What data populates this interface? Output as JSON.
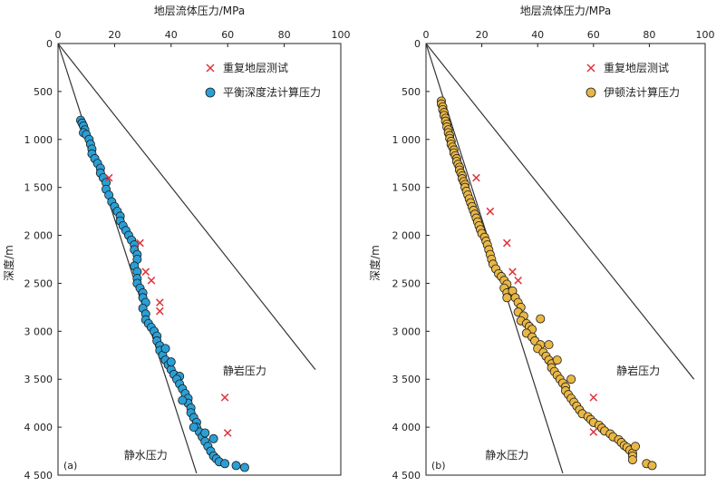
{
  "chart_data": [
    {
      "type": "scatter",
      "panel_label": "(a)",
      "x_label_top": "地层流体压力/MPa",
      "ylabel": "深度/m",
      "xlim": [
        0,
        100
      ],
      "ylim": [
        0,
        4500
      ],
      "x_ticks": [
        0,
        20,
        40,
        60,
        80,
        100
      ],
      "y_ticks": [
        0,
        500,
        1000,
        1500,
        2000,
        2500,
        3000,
        3500,
        4000,
        4500
      ],
      "y_tick_labels": [
        "0",
        "500",
        "1 000",
        "1 500",
        "2 000",
        "2 500",
        "3 000",
        "3 500",
        "4 000",
        "4 500"
      ],
      "legend": [
        {
          "name": "重复地层测试",
          "marker": "x",
          "color": "#e0333a"
        },
        {
          "name": "平衡深度法计算压力",
          "marker": "circle",
          "color": "#2a9fd6"
        }
      ],
      "reference_lines": [
        {
          "name": "静水压力",
          "from": [
            0,
            0
          ],
          "to": [
            49,
            4480
          ]
        },
        {
          "name": "静岩压力",
          "from": [
            0,
            0
          ],
          "to": [
            91,
            3400
          ]
        }
      ],
      "annotations": [
        {
          "text": "静水压力",
          "x": 31,
          "y": 4330
        },
        {
          "text": "静岩压力",
          "x": 66,
          "y": 3450
        }
      ],
      "series": [
        {
          "name": "平衡深度法计算压力",
          "marker": "circle",
          "color": "#2a9fd6",
          "points": [
            [
              8,
              800
            ],
            [
              8.5,
              830
            ],
            [
              9,
              860
            ],
            [
              9.5,
              900
            ],
            [
              9,
              930
            ],
            [
              10,
              950
            ],
            [
              11,
              1000
            ],
            [
              11.5,
              1050
            ],
            [
              12,
              1100
            ],
            [
              12,
              1150
            ],
            [
              13,
              1200
            ],
            [
              14,
              1250
            ],
            [
              15,
              1300
            ],
            [
              15,
              1350
            ],
            [
              16,
              1400
            ],
            [
              17,
              1450
            ],
            [
              17,
              1520
            ],
            [
              18,
              1580
            ],
            [
              19,
              1650
            ],
            [
              20,
              1700
            ],
            [
              21,
              1750
            ],
            [
              22,
              1800
            ],
            [
              22,
              1850
            ],
            [
              23,
              1900
            ],
            [
              24,
              1950
            ],
            [
              25,
              2000
            ],
            [
              26,
              2050
            ],
            [
              27,
              2100
            ],
            [
              27,
              2150
            ],
            [
              28,
              2200
            ],
            [
              28,
              2250
            ],
            [
              27,
              2320
            ],
            [
              28,
              2380
            ],
            [
              28,
              2450
            ],
            [
              28,
              2500
            ],
            [
              29,
              2550
            ],
            [
              30,
              2600
            ],
            [
              30,
              2650
            ],
            [
              31,
              2700
            ],
            [
              30,
              2760
            ],
            [
              31,
              2820
            ],
            [
              31,
              2880
            ],
            [
              32,
              2920
            ],
            [
              33,
              2960
            ],
            [
              34,
              3000
            ],
            [
              35,
              3050
            ],
            [
              35,
              3100
            ],
            [
              36,
              3150
            ],
            [
              36,
              3200
            ],
            [
              37,
              3250
            ],
            [
              38,
              3300
            ],
            [
              39,
              3350
            ],
            [
              40,
              3400
            ],
            [
              41,
              3450
            ],
            [
              43,
              3470
            ],
            [
              42,
              3500
            ],
            [
              43,
              3550
            ],
            [
              44,
              3600
            ],
            [
              45,
              3650
            ],
            [
              46,
              3700
            ],
            [
              46,
              3750
            ],
            [
              47,
              3800
            ],
            [
              47,
              3850
            ],
            [
              48,
              3900
            ],
            [
              49,
              3950
            ],
            [
              49,
              4000
            ],
            [
              50,
              4050
            ],
            [
              51,
              4100
            ],
            [
              52,
              4150
            ],
            [
              53,
              4200
            ],
            [
              54,
              4250
            ],
            [
              55,
              4300
            ],
            [
              56,
              4330
            ],
            [
              57,
              4360
            ],
            [
              59,
              4380
            ],
            [
              63,
              4400
            ],
            [
              66,
              4420
            ],
            [
              38,
              3180
            ],
            [
              40,
              3320
            ],
            [
              44,
              3720
            ],
            [
              48,
              4000
            ],
            [
              52,
              4060
            ],
            [
              55,
              4120
            ]
          ]
        },
        {
          "name": "重复地层测试",
          "marker": "x",
          "color": "#e0333a",
          "points": [
            [
              18,
              1400
            ],
            [
              29,
              2080
            ],
            [
              31,
              2380
            ],
            [
              33,
              2470
            ],
            [
              36,
              2700
            ],
            [
              36,
              2790
            ],
            [
              59,
              3690
            ],
            [
              60,
              4060
            ]
          ]
        }
      ]
    },
    {
      "type": "scatter",
      "panel_label": "(b)",
      "x_label_top": "地层流体压力/MPa",
      "ylabel": "深度/m",
      "xlim": [
        0,
        100
      ],
      "ylim": [
        0,
        4500
      ],
      "x_ticks": [
        0,
        20,
        40,
        60,
        80,
        100
      ],
      "y_ticks": [
        0,
        500,
        1000,
        1500,
        2000,
        2500,
        3000,
        3500,
        4000,
        4500
      ],
      "y_tick_labels": [
        "0",
        "500",
        "1 000",
        "1 500",
        "2 000",
        "2 500",
        "3 000",
        "3 500",
        "4 000",
        "4 500"
      ],
      "legend": [
        {
          "name": "重复地层测试",
          "marker": "x",
          "color": "#e0333a"
        },
        {
          "name": "伊顿法计算压力",
          "marker": "circle",
          "color": "#e9b745"
        }
      ],
      "reference_lines": [
        {
          "name": "静水压力",
          "from": [
            0,
            0
          ],
          "to": [
            49,
            4480
          ]
        },
        {
          "name": "静岩压力",
          "from": [
            0,
            0
          ],
          "to": [
            96,
            3500
          ]
        }
      ],
      "annotations": [
        {
          "text": "静水压力",
          "x": 29,
          "y": 4330
        },
        {
          "text": "静岩压力",
          "x": 76,
          "y": 3450
        }
      ],
      "series": [
        {
          "name": "伊顿法计算压力",
          "marker": "circle",
          "color": "#e9b745",
          "points": [
            [
              5.5,
              600
            ],
            [
              5.5,
              630
            ],
            [
              6,
              660
            ],
            [
              6,
              690
            ],
            [
              6.5,
              720
            ],
            [
              6.5,
              750
            ],
            [
              7,
              780
            ],
            [
              7,
              810
            ],
            [
              7.5,
              840
            ],
            [
              7.5,
              870
            ],
            [
              8,
              900
            ],
            [
              8,
              930
            ],
            [
              8.5,
              960
            ],
            [
              8.5,
              990
            ],
            [
              9,
              1020
            ],
            [
              9,
              1050
            ],
            [
              9.5,
              1080
            ],
            [
              10,
              1110
            ],
            [
              10,
              1140
            ],
            [
              10.5,
              1170
            ],
            [
              11,
              1200
            ],
            [
              11,
              1230
            ],
            [
              11.5,
              1260
            ],
            [
              12,
              1290
            ],
            [
              12,
              1320
            ],
            [
              12.5,
              1350
            ],
            [
              13,
              1380
            ],
            [
              13,
              1410
            ],
            [
              13.5,
              1440
            ],
            [
              14,
              1470
            ],
            [
              14,
              1500
            ],
            [
              14.5,
              1540
            ],
            [
              15,
              1580
            ],
            [
              15.5,
              1620
            ],
            [
              16,
              1660
            ],
            [
              16.5,
              1700
            ],
            [
              17,
              1740
            ],
            [
              17.5,
              1780
            ],
            [
              18,
              1820
            ],
            [
              18.5,
              1860
            ],
            [
              19,
              1900
            ],
            [
              19.5,
              1940
            ],
            [
              20,
              1980
            ],
            [
              21,
              2020
            ],
            [
              21.5,
              2060
            ],
            [
              22,
              2100
            ],
            [
              22.5,
              2150
            ],
            [
              23,
              2200
            ],
            [
              23.5,
              2250
            ],
            [
              24,
              2300
            ],
            [
              25,
              2350
            ],
            [
              26,
              2400
            ],
            [
              27,
              2430
            ],
            [
              28,
              2470
            ],
            [
              29,
              2510
            ],
            [
              28,
              2550
            ],
            [
              29,
              2600
            ],
            [
              29,
              2650
            ],
            [
              31,
              2580
            ],
            [
              32,
              2650
            ],
            [
              33,
              2700
            ],
            [
              34,
              2750
            ],
            [
              33,
              2800
            ],
            [
              35,
              2840
            ],
            [
              34,
              2890
            ],
            [
              36,
              2920
            ],
            [
              37,
              2950
            ],
            [
              38,
              2980
            ],
            [
              36,
              3020
            ],
            [
              38,
              3060
            ],
            [
              39,
              3100
            ],
            [
              41,
              3140
            ],
            [
              40,
              3180
            ],
            [
              42,
              3220
            ],
            [
              43,
              3260
            ],
            [
              44,
              3300
            ],
            [
              45,
              3340
            ],
            [
              45,
              3380
            ],
            [
              46,
              3420
            ],
            [
              47,
              3460
            ],
            [
              48,
              3500
            ],
            [
              49,
              3540
            ],
            [
              50,
              3580
            ],
            [
              50,
              3620
            ],
            [
              51,
              3660
            ],
            [
              52,
              3700
            ],
            [
              53,
              3740
            ],
            [
              54,
              3780
            ],
            [
              55,
              3820
            ],
            [
              56,
              3860
            ],
            [
              58,
              3890
            ],
            [
              59,
              3920
            ],
            [
              60,
              3950
            ],
            [
              62,
              3980
            ],
            [
              63,
              4010
            ],
            [
              64,
              4040
            ],
            [
              66,
              4070
            ],
            [
              67,
              4100
            ],
            [
              69,
              4130
            ],
            [
              70,
              4160
            ],
            [
              71,
              4190
            ],
            [
              72,
              4210
            ],
            [
              73,
              4240
            ],
            [
              74,
              4270
            ],
            [
              74,
              4300
            ],
            [
              74,
              4340
            ],
            [
              75,
              4200
            ],
            [
              79,
              4380
            ],
            [
              81,
              4400
            ],
            [
              41,
              2870
            ],
            [
              44,
              3140
            ],
            [
              47,
              3300
            ],
            [
              52,
              3500
            ]
          ]
        },
        {
          "name": "重复地层测试",
          "marker": "x",
          "color": "#e0333a",
          "points": [
            [
              18,
              1400
            ],
            [
              23,
              1750
            ],
            [
              29,
              2080
            ],
            [
              31,
              2380
            ],
            [
              33,
              2470
            ],
            [
              60,
              3690
            ],
            [
              60,
              4050
            ]
          ]
        }
      ]
    }
  ]
}
